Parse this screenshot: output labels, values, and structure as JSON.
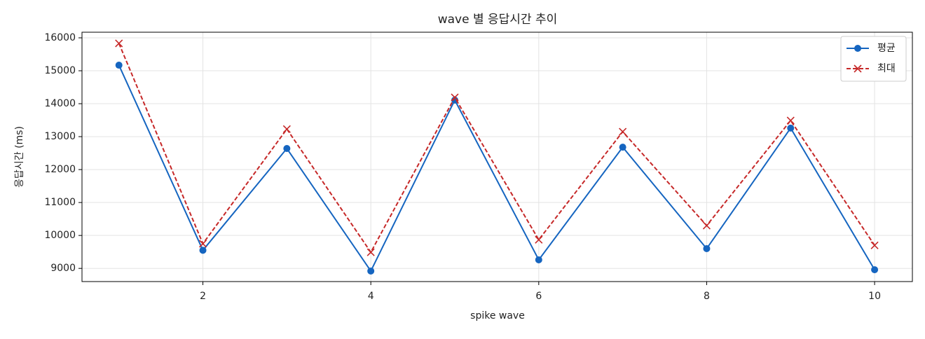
{
  "chart_data": {
    "type": "line",
    "title": "wave 별 응답시간 추이",
    "xlabel": "spike wave",
    "ylabel": "응답시간 (ms)",
    "x": [
      1,
      2,
      3,
      4,
      5,
      6,
      7,
      8,
      9,
      10
    ],
    "series": [
      {
        "name": "평균",
        "color": "#1565c0",
        "marker": "o",
        "linestyle": "solid",
        "values": [
          15170,
          9550,
          12640,
          8920,
          14110,
          9260,
          12680,
          9600,
          13260,
          8960
        ]
      },
      {
        "name": "최대",
        "color": "#c62828",
        "marker": "x",
        "linestyle": "dashed",
        "values": [
          15830,
          9750,
          13230,
          9490,
          14190,
          9870,
          13150,
          10300,
          13490,
          9700
        ]
      }
    ],
    "xlim": [
      0.56,
      10.45
    ],
    "xticks": [
      2,
      4,
      6,
      8,
      10
    ],
    "ylim": [
      8600,
      16170
    ],
    "yticks": [
      9000,
      10000,
      11000,
      12000,
      13000,
      14000,
      15000,
      16000
    ],
    "grid": true,
    "legend": "upper right"
  }
}
